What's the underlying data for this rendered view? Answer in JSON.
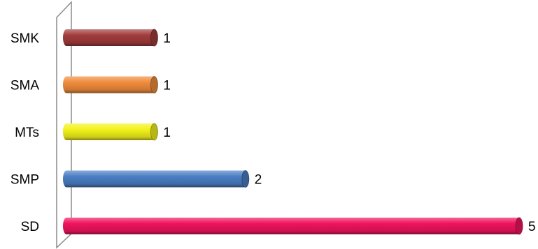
{
  "chart_data": {
    "type": "bar",
    "orientation": "horizontal",
    "style": "3d-cylinder",
    "categories": [
      "SMK",
      "SMA",
      "MTs",
      "SMP",
      "SD"
    ],
    "values": [
      1,
      1,
      1,
      2,
      5
    ],
    "colors": [
      "#a33c3c",
      "#f08c3c",
      "#f2f21c",
      "#4a7fc4",
      "#f0145e"
    ],
    "xlim": [
      0,
      5
    ],
    "grid": false,
    "legend": "none",
    "data_labels": true
  }
}
